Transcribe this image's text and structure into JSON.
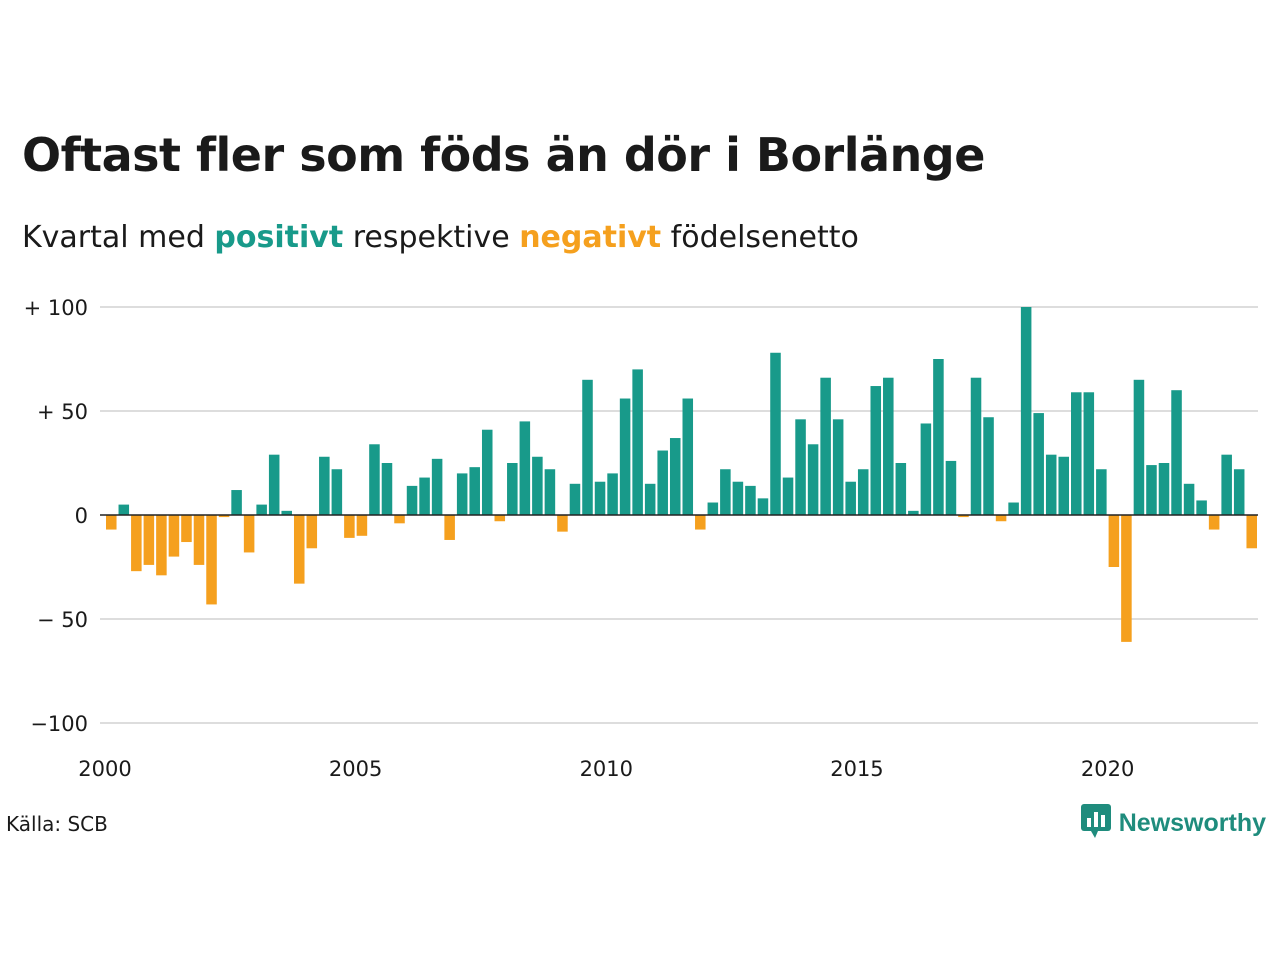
{
  "title": "Oftast fler som föds än dör i Borlänge",
  "subtitle": {
    "prefix": "Kvartal med ",
    "positive_word": "positivt",
    "middle": " respektive ",
    "negative_word": "negativt",
    "suffix": " födelsenetto"
  },
  "source": "Källa: SCB",
  "brand": {
    "name": "Newsworthy",
    "icon": "newsworthy-bar-chart-logo-icon"
  },
  "colors": {
    "positive": "#189a8a",
    "negative": "#f5a01e",
    "grid": "#dddddd",
    "zero_line": "#222222"
  },
  "chart_data": {
    "type": "bar",
    "x_start": "2000 Q1",
    "x_unit": "quarter",
    "ylim": [
      -100,
      100
    ],
    "y_ticks": [
      {
        "value": 100,
        "label": "+ 100"
      },
      {
        "value": 50,
        "label": "+  50"
      },
      {
        "value": 0,
        "label": "0"
      },
      {
        "value": -50,
        "label": "− 50"
      },
      {
        "value": -100,
        "label": "−100"
      }
    ],
    "x_ticks": [
      "2000",
      "2005",
      "2010",
      "2015",
      "2020"
    ],
    "values": [
      -7,
      5,
      -27,
      -24,
      -29,
      -20,
      -13,
      -24,
      -43,
      -1,
      12,
      -18,
      5,
      29,
      2,
      -33,
      -16,
      28,
      22,
      -11,
      -10,
      34,
      25,
      -4,
      14,
      18,
      27,
      -12,
      20,
      23,
      41,
      -3,
      25,
      45,
      28,
      22,
      -8,
      15,
      65,
      16,
      20,
      56,
      70,
      15,
      31,
      37,
      56,
      -7,
      6,
      22,
      16,
      14,
      8,
      78,
      18,
      46,
      34,
      66,
      46,
      16,
      22,
      62,
      66,
      25,
      2,
      44,
      75,
      26,
      -1,
      66,
      47,
      -3,
      6,
      100,
      49,
      29,
      28,
      59,
      59,
      22,
      -25,
      -61,
      65,
      24,
      25,
      60,
      15,
      7,
      -7,
      29,
      22,
      -16
    ],
    "title": "Oftast fler som föds än dör i Borlänge",
    "grid": true
  }
}
